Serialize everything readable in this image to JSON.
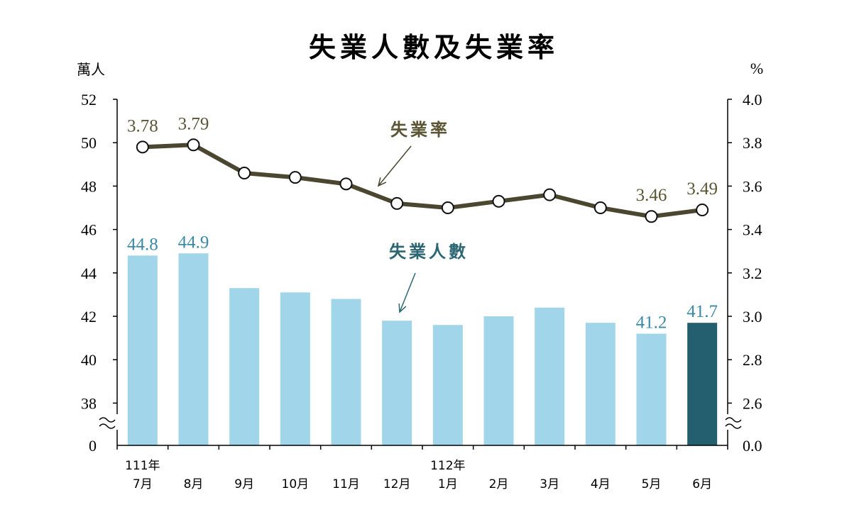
{
  "chart_data": {
    "type": "bar+line",
    "title": "失業人數及失業率",
    "left_axis": {
      "unit": "萬人",
      "ticks": [
        "52",
        "50",
        "48",
        "46",
        "44",
        "42",
        "40",
        "38",
        "0"
      ],
      "range": [
        38,
        52
      ],
      "break": true
    },
    "right_axis": {
      "unit": "%",
      "ticks": [
        "4.0",
        "3.8",
        "3.6",
        "3.4",
        "3.2",
        "3.0",
        "2.8",
        "2.6",
        "0.0"
      ],
      "range": [
        2.6,
        4.0
      ],
      "break": true
    },
    "categories": [
      "7月",
      "8月",
      "9月",
      "10月",
      "11月",
      "12月",
      "1月",
      "2月",
      "3月",
      "4月",
      "5月",
      "6月"
    ],
    "year_labels": [
      {
        "category_index": 0,
        "text": "111年"
      },
      {
        "category_index": 6,
        "text": "112年"
      }
    ],
    "series": [
      {
        "name": "失業人數",
        "type": "bar",
        "axis": "left",
        "values": [
          44.8,
          44.9,
          43.3,
          43.1,
          42.8,
          41.8,
          41.6,
          42.0,
          42.4,
          41.7,
          41.2,
          41.7
        ],
        "labels": [
          {
            "index": 0,
            "text": "44.8"
          },
          {
            "index": 1,
            "text": "44.9"
          },
          {
            "index": 10,
            "text": "41.2"
          },
          {
            "index": 11,
            "text": "41.7"
          }
        ],
        "highlight_index": 11
      },
      {
        "name": "失業率",
        "type": "line",
        "axis": "right",
        "values": [
          3.78,
          3.79,
          3.66,
          3.64,
          3.61,
          3.52,
          3.5,
          3.53,
          3.56,
          3.5,
          3.46,
          3.49
        ],
        "labels": [
          {
            "index": 0,
            "text": "3.78"
          },
          {
            "index": 1,
            "text": "3.79"
          },
          {
            "index": 10,
            "text": "3.46"
          },
          {
            "index": 11,
            "text": "3.49"
          }
        ]
      }
    ],
    "grid": false,
    "legend": "inline annotations with arrows"
  },
  "colors": {
    "bar": "#a1d6ea",
    "bar_highlight": "#235f6e",
    "bar_label": "#3a8aa6",
    "line": "#4a4630",
    "line_label": "#5b5536",
    "bar_annotation": "#2c6673",
    "axis": "#000000"
  }
}
